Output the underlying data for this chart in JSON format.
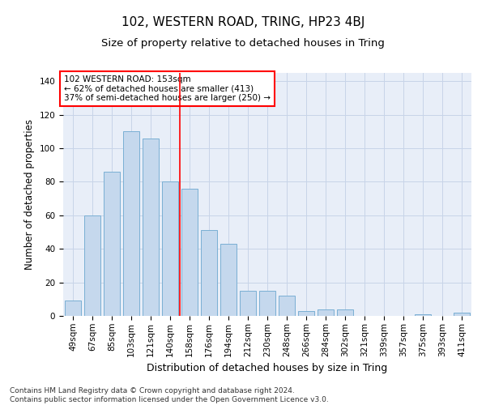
{
  "title": "102, WESTERN ROAD, TRING, HP23 4BJ",
  "subtitle": "Size of property relative to detached houses in Tring",
  "xlabel": "Distribution of detached houses by size in Tring",
  "ylabel": "Number of detached properties",
  "bar_labels": [
    "49sqm",
    "67sqm",
    "85sqm",
    "103sqm",
    "121sqm",
    "140sqm",
    "158sqm",
    "176sqm",
    "194sqm",
    "212sqm",
    "230sqm",
    "248sqm",
    "266sqm",
    "284sqm",
    "302sqm",
    "321sqm",
    "339sqm",
    "357sqm",
    "375sqm",
    "393sqm",
    "411sqm"
  ],
  "bar_values": [
    9,
    60,
    86,
    110,
    106,
    80,
    76,
    51,
    43,
    15,
    15,
    12,
    3,
    4,
    4,
    0,
    0,
    0,
    1,
    0,
    2
  ],
  "bar_color": "#c5d8ed",
  "bar_edge_color": "#7aafd4",
  "annotation_text": "102 WESTERN ROAD: 153sqm\n← 62% of detached houses are smaller (413)\n37% of semi-detached houses are larger (250) →",
  "annotation_box_color": "white",
  "annotation_box_edge_color": "red",
  "vline_color": "red",
  "vline_x": 5.5,
  "ylim": [
    0,
    145
  ],
  "yticks": [
    0,
    20,
    40,
    60,
    80,
    100,
    120,
    140
  ],
  "grid_color": "#c8d4e8",
  "bg_color": "#e8eef8",
  "footer": "Contains HM Land Registry data © Crown copyright and database right 2024.\nContains public sector information licensed under the Open Government Licence v3.0.",
  "title_fontsize": 11,
  "subtitle_fontsize": 9.5,
  "xlabel_fontsize": 9,
  "ylabel_fontsize": 8.5,
  "tick_fontsize": 7.5,
  "annotation_fontsize": 7.5,
  "footer_fontsize": 6.5
}
